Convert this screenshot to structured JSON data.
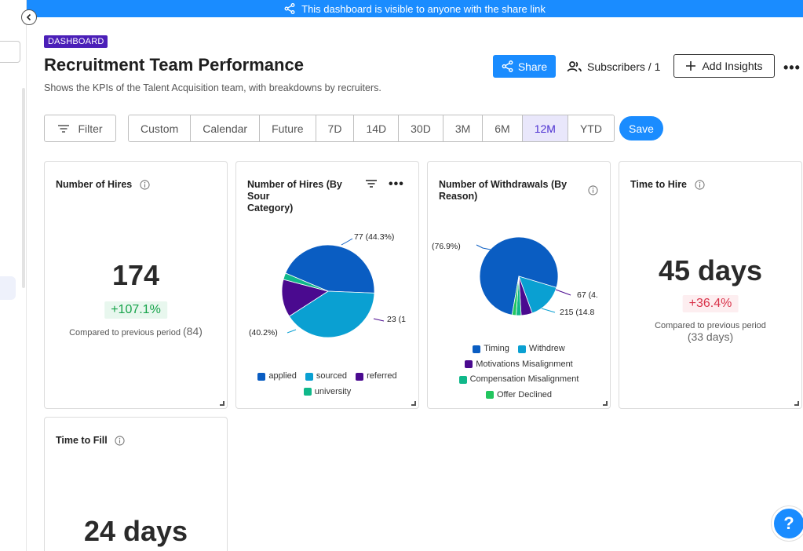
{
  "banner": {
    "text": "This dashboard is visible to anyone with the share link"
  },
  "header": {
    "tag": "DASHBOARD",
    "title": "Recruitment Team Performance",
    "subtitle": "Shows the KPIs of the Talent Acquisition team, with breakdowns by recruiters.",
    "share_label": "Share",
    "subscribers_label": "Subscribers / 1",
    "add_insights_label": "Add Insights",
    "more": "•••"
  },
  "filters": {
    "filter_label": "Filter",
    "ranges": [
      "Custom",
      "Calendar",
      "Future",
      "7D",
      "14D",
      "30D",
      "3M",
      "6M",
      "12M",
      "YTD"
    ],
    "active_range": "12M",
    "save_label": "Save"
  },
  "cards": {
    "hires": {
      "title": "Number of Hires",
      "value": "174",
      "change": "+107.1%",
      "compare_text": "Compared to previous period",
      "previous": "(84)"
    },
    "hires_by_source": {
      "title_line1": "Number of Hires (By Sour",
      "title_line2": "Category)",
      "more": "•••"
    },
    "withdrawals": {
      "title_line1": "Number of Withdrawals (By",
      "title_line2": "Reason)"
    },
    "time_to_hire": {
      "title": "Time to Hire",
      "value": "45 days",
      "change": "+36.4%",
      "compare_text": "Compared to previous period",
      "previous": "(33 days)"
    },
    "time_to_fill": {
      "title": "Time to Fill",
      "value": "24 days"
    }
  },
  "chart_data": [
    {
      "type": "pie",
      "title": "Number of Hires (By Source Category)",
      "categories": [
        "applied",
        "sourced",
        "referred",
        "university"
      ],
      "values": [
        77,
        70,
        23,
        4
      ],
      "colors": [
        "#0a5dc2",
        "#0aa0d2",
        "#4a0a8f",
        "#10b88a"
      ],
      "labels": [
        "77 (44.3%)",
        "(40.2%)",
        "23 (1"
      ],
      "legend": "bottom"
    },
    {
      "type": "pie",
      "title": "Number of Withdrawals (By Reason)",
      "categories": [
        "Timing",
        "Withdrew",
        "Motivations Misalignment",
        "Compensation Misalignment",
        "Offer Declined"
      ],
      "values": [
        1117,
        215,
        67,
        30,
        24
      ],
      "colors": [
        "#0a5dc2",
        "#0aa0d2",
        "#4a0a8f",
        "#10b88a",
        "#22c55e"
      ],
      "labels": [
        "(76.9%)",
        "67 (4.",
        "215 (14.8"
      ],
      "legend": "bottom"
    }
  ],
  "help": {
    "label": "?"
  }
}
